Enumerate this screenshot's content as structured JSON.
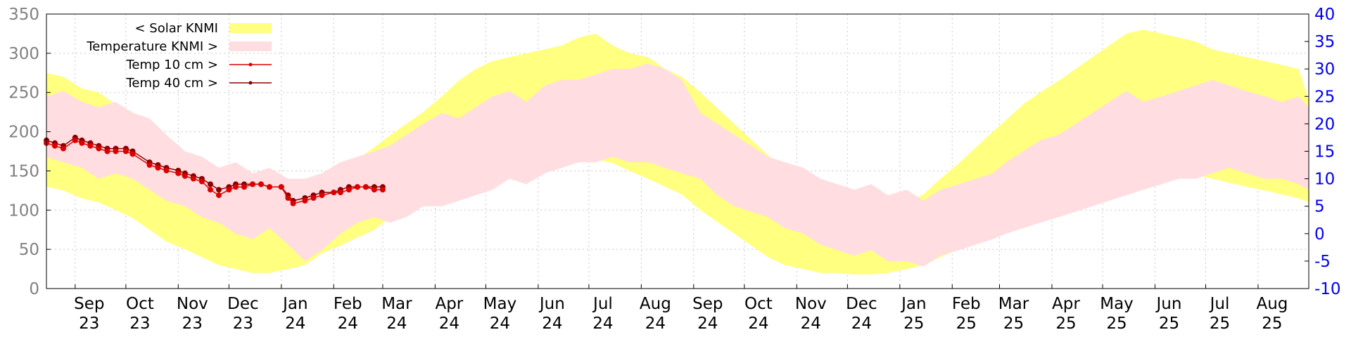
{
  "chart_data": {
    "type": "area",
    "title": "",
    "grid": true,
    "legend_placement": "top-left",
    "colors": {
      "solar": "#ffff80",
      "temperature_band": "#ffdde0",
      "temp10": "#dd0000",
      "temp40": "#8b0000",
      "left_axis": "#808080",
      "right_axis": "#0000ee"
    },
    "left_axis": {
      "min": 0,
      "max": 350,
      "ticks": [
        0,
        50,
        100,
        150,
        200,
        250,
        300,
        350
      ],
      "tick_labels": [
        "0",
        "50",
        "100",
        "150",
        "200",
        "250",
        "300",
        "350"
      ]
    },
    "right_axis": {
      "min": -10,
      "max": 40,
      "ticks": [
        -10,
        -5,
        0,
        5,
        10,
        15,
        20,
        25,
        30,
        35,
        40
      ],
      "tick_labels": [
        "-10",
        "-5",
        "0",
        "5",
        "10",
        "15",
        "20",
        "25",
        "30",
        "35",
        "40"
      ]
    },
    "x_axis": {
      "min": "2023-08-15",
      "max": "2025-08-31",
      "ticks": [
        "2023-09-01",
        "2023-10-01",
        "2023-11-01",
        "2023-12-01",
        "2024-01-01",
        "2024-02-01",
        "2024-03-01",
        "2024-04-01",
        "2024-05-01",
        "2024-06-01",
        "2024-07-01",
        "2024-08-01",
        "2024-09-01",
        "2024-10-01",
        "2024-11-01",
        "2024-12-01",
        "2025-01-01",
        "2025-02-01",
        "2025-03-01",
        "2025-04-01",
        "2025-05-01",
        "2025-06-01",
        "2025-07-01",
        "2025-08-01"
      ],
      "tick_months": [
        "Sep",
        "Oct",
        "Nov",
        "Dec",
        "Jan",
        "Feb",
        "Mar",
        "Apr",
        "May",
        "Jun",
        "Jul",
        "Aug",
        "Sep",
        "Oct",
        "Nov",
        "Dec",
        "Jan",
        "Feb",
        "Mar",
        "Apr",
        "May",
        "Jun",
        "Jul",
        "Aug"
      ],
      "tick_years": [
        "23",
        "23",
        "23",
        "23",
        "24",
        "24",
        "24",
        "24",
        "24",
        "24",
        "24",
        "24",
        "24",
        "24",
        "24",
        "24",
        "25",
        "25",
        "25",
        "25",
        "25",
        "25",
        "25",
        "25"
      ]
    },
    "legend": [
      {
        "label": "< Solar KNMI",
        "series": "solar"
      },
      {
        "label": "Temperature KNMI >",
        "series": "temperature_band"
      },
      {
        "label": "Temp 10 cm >",
        "series": "temp10"
      },
      {
        "label": "Temp 40 cm >",
        "series": "temp40"
      }
    ],
    "series": [
      {
        "key": "solar",
        "name": "< Solar KNMI",
        "axis": "left",
        "x": [
          "2023-08-15",
          "2023-08-25",
          "2023-09-05",
          "2023-09-15",
          "2023-09-25",
          "2023-10-05",
          "2023-10-15",
          "2023-10-25",
          "2023-11-05",
          "2023-11-15",
          "2023-11-25",
          "2023-12-05",
          "2023-12-15",
          "2023-12-25",
          "2024-01-05",
          "2024-01-15",
          "2024-01-25",
          "2024-02-05",
          "2024-02-15",
          "2024-02-25",
          "2024-03-05",
          "2024-03-15",
          "2024-03-25",
          "2024-04-05",
          "2024-04-15",
          "2024-04-25",
          "2024-05-05",
          "2024-05-15",
          "2024-05-25",
          "2024-06-05",
          "2024-06-15",
          "2024-06-25",
          "2024-07-05",
          "2024-07-15",
          "2024-07-25",
          "2024-08-05",
          "2024-08-15",
          "2024-08-25",
          "2024-09-05",
          "2024-09-15",
          "2024-09-25",
          "2024-10-05",
          "2024-10-15",
          "2024-10-25",
          "2024-11-05",
          "2024-11-15",
          "2024-11-25",
          "2024-12-05",
          "2024-12-15",
          "2024-12-25",
          "2025-01-05",
          "2025-01-15",
          "2025-01-25",
          "2025-02-05",
          "2025-02-15",
          "2025-02-25",
          "2025-03-05",
          "2025-03-15",
          "2025-03-25",
          "2025-04-05",
          "2025-04-15",
          "2025-04-25",
          "2025-05-05",
          "2025-05-15",
          "2025-05-25",
          "2025-06-05",
          "2025-06-15",
          "2025-06-25",
          "2025-07-05",
          "2025-07-15",
          "2025-07-25",
          "2025-08-05",
          "2025-08-15",
          "2025-08-25",
          "2025-08-31"
        ],
        "high": [
          275,
          270,
          255,
          250,
          235,
          225,
          190,
          175,
          150,
          140,
          120,
          105,
          80,
          85,
          95,
          110,
          135,
          145,
          165,
          180,
          195,
          210,
          225,
          245,
          265,
          280,
          290,
          295,
          300,
          305,
          310,
          320,
          325,
          310,
          300,
          295,
          280,
          270,
          250,
          230,
          210,
          190,
          170,
          150,
          135,
          120,
          105,
          95,
          90,
          95,
          110,
          120,
          140,
          160,
          180,
          200,
          215,
          235,
          250,
          265,
          280,
          295,
          310,
          325,
          330,
          325,
          320,
          315,
          305,
          300,
          295,
          290,
          285,
          280,
          240
        ],
        "low": [
          130,
          125,
          115,
          110,
          100,
          90,
          75,
          60,
          50,
          40,
          30,
          25,
          20,
          20,
          25,
          30,
          45,
          55,
          65,
          75,
          90,
          100,
          110,
          120,
          130,
          135,
          140,
          145,
          150,
          155,
          160,
          165,
          165,
          160,
          150,
          140,
          130,
          120,
          100,
          85,
          70,
          55,
          40,
          30,
          25,
          20,
          20,
          18,
          18,
          20,
          25,
          30,
          40,
          50,
          60,
          75,
          90,
          100,
          110,
          120,
          130,
          140,
          145,
          150,
          155,
          155,
          150,
          145,
          140,
          135,
          130,
          125,
          120,
          115,
          110
        ]
      },
      {
        "key": "temperature_band",
        "name": "Temperature KNMI >",
        "axis": "right",
        "x": [
          "2023-08-15",
          "2023-08-25",
          "2023-09-05",
          "2023-09-15",
          "2023-09-25",
          "2023-10-05",
          "2023-10-15",
          "2023-10-25",
          "2023-11-05",
          "2023-11-15",
          "2023-11-25",
          "2023-12-05",
          "2023-12-15",
          "2023-12-25",
          "2024-01-05",
          "2024-01-15",
          "2024-01-25",
          "2024-02-05",
          "2024-02-15",
          "2024-02-25",
          "2024-03-05",
          "2024-03-15",
          "2024-03-25",
          "2024-04-05",
          "2024-04-15",
          "2024-04-25",
          "2024-05-05",
          "2024-05-15",
          "2024-05-25",
          "2024-06-05",
          "2024-06-15",
          "2024-06-25",
          "2024-07-05",
          "2024-07-15",
          "2024-07-25",
          "2024-08-05",
          "2024-08-15",
          "2024-08-25",
          "2024-09-05",
          "2024-09-15",
          "2024-09-25",
          "2024-10-05",
          "2024-10-15",
          "2024-10-25",
          "2024-11-05",
          "2024-11-15",
          "2024-11-25",
          "2024-12-05",
          "2024-12-15",
          "2024-12-25",
          "2025-01-05",
          "2025-01-15",
          "2025-01-25",
          "2025-02-05",
          "2025-02-15",
          "2025-02-25",
          "2025-03-05",
          "2025-03-15",
          "2025-03-25",
          "2025-04-05",
          "2025-04-15",
          "2025-04-25",
          "2025-05-05",
          "2025-05-15",
          "2025-05-25",
          "2025-06-05",
          "2025-06-15",
          "2025-06-25",
          "2025-07-05",
          "2025-07-15",
          "2025-07-25",
          "2025-08-05",
          "2025-08-15",
          "2025-08-25",
          "2025-08-31"
        ],
        "high": [
          25,
          26,
          24,
          23,
          24,
          22,
          21,
          18,
          15,
          14,
          12,
          13,
          11,
          12,
          10,
          10,
          11,
          13,
          14,
          15,
          16,
          18,
          20,
          22,
          21,
          23,
          25,
          26,
          24,
          27,
          28,
          28,
          29,
          30,
          30,
          31,
          30,
          28,
          22,
          20,
          18,
          16,
          14,
          13,
          12,
          10,
          9,
          8,
          9,
          7,
          8,
          6,
          8,
          9,
          10,
          11,
          13,
          15,
          17,
          18,
          20,
          22,
          24,
          26,
          24,
          25,
          26,
          27,
          28,
          27,
          26,
          25,
          24,
          25,
          23
        ],
        "low": [
          14,
          13,
          12,
          10,
          11,
          10,
          8,
          6,
          5,
          3,
          2,
          0,
          -1,
          1,
          -2,
          -5,
          -3,
          0,
          2,
          3,
          2,
          3,
          5,
          5,
          6,
          7,
          8,
          10,
          9,
          11,
          12,
          13,
          13,
          14,
          13,
          13,
          12,
          11,
          10,
          7,
          5,
          4,
          3,
          1,
          0,
          -2,
          -3,
          -4,
          -3,
          -5,
          -5,
          -6,
          -4,
          -3,
          -2,
          -1,
          0,
          1,
          2,
          3,
          4,
          5,
          6,
          7,
          8,
          9,
          10,
          10,
          11,
          12,
          11,
          10,
          10,
          9,
          8
        ]
      },
      {
        "key": "temp10",
        "name": "Temp 10 cm >",
        "axis": "right",
        "x": [
          "2023-08-15",
          "2023-08-20",
          "2023-08-25",
          "2023-09-01",
          "2023-09-05",
          "2023-09-10",
          "2023-09-15",
          "2023-09-20",
          "2023-09-25",
          "2023-10-01",
          "2023-10-05",
          "2023-10-15",
          "2023-10-20",
          "2023-10-25",
          "2023-11-01",
          "2023-11-05",
          "2023-11-10",
          "2023-11-15",
          "2023-11-20",
          "2023-11-25",
          "2023-12-01",
          "2023-12-05",
          "2023-12-10",
          "2023-12-15",
          "2023-12-20",
          "2023-12-25",
          "2024-01-01",
          "2024-01-05",
          "2024-01-08",
          "2024-01-15",
          "2024-01-20",
          "2024-01-25",
          "2024-02-01",
          "2024-02-05",
          "2024-02-10",
          "2024-02-15",
          "2024-02-20",
          "2024-02-25",
          "2024-03-01"
        ],
        "values": [
          16.5,
          16.0,
          15.5,
          17.0,
          16.5,
          16.0,
          15.5,
          15.0,
          15.0,
          15.0,
          14.5,
          12.5,
          12.0,
          11.5,
          11.0,
          10.5,
          10.0,
          9.5,
          8.0,
          7.0,
          8.0,
          8.5,
          8.5,
          9.0,
          9.0,
          8.5,
          8.5,
          6.5,
          5.5,
          6.0,
          6.5,
          7.0,
          7.5,
          7.5,
          8.0,
          8.5,
          8.5,
          8.0,
          8.0
        ]
      },
      {
        "key": "temp40",
        "name": "Temp 40 cm >",
        "axis": "right",
        "x": [
          "2023-08-15",
          "2023-08-20",
          "2023-08-25",
          "2023-09-01",
          "2023-09-05",
          "2023-09-10",
          "2023-09-15",
          "2023-09-20",
          "2023-09-25",
          "2023-10-01",
          "2023-10-05",
          "2023-10-15",
          "2023-10-20",
          "2023-10-25",
          "2023-11-01",
          "2023-11-05",
          "2023-11-10",
          "2023-11-15",
          "2023-11-20",
          "2023-11-25",
          "2023-12-01",
          "2023-12-05",
          "2023-12-10",
          "2023-12-15",
          "2023-12-20",
          "2023-12-25",
          "2024-01-01",
          "2024-01-05",
          "2024-01-08",
          "2024-01-15",
          "2024-01-20",
          "2024-01-25",
          "2024-02-01",
          "2024-02-05",
          "2024-02-10",
          "2024-02-15",
          "2024-02-20",
          "2024-02-25",
          "2024-03-01"
        ],
        "values": [
          17.0,
          16.5,
          16.0,
          17.5,
          17.0,
          16.5,
          16.0,
          15.5,
          15.5,
          15.5,
          15.0,
          13.0,
          12.5,
          12.0,
          11.5,
          11.0,
          10.5,
          10.0,
          9.0,
          8.0,
          8.5,
          9.0,
          9.0,
          9.0,
          9.0,
          8.5,
          8.5,
          7.0,
          6.0,
          6.5,
          7.0,
          7.5,
          7.5,
          8.0,
          8.5,
          8.5,
          8.5,
          8.5,
          8.5
        ]
      }
    ]
  }
}
